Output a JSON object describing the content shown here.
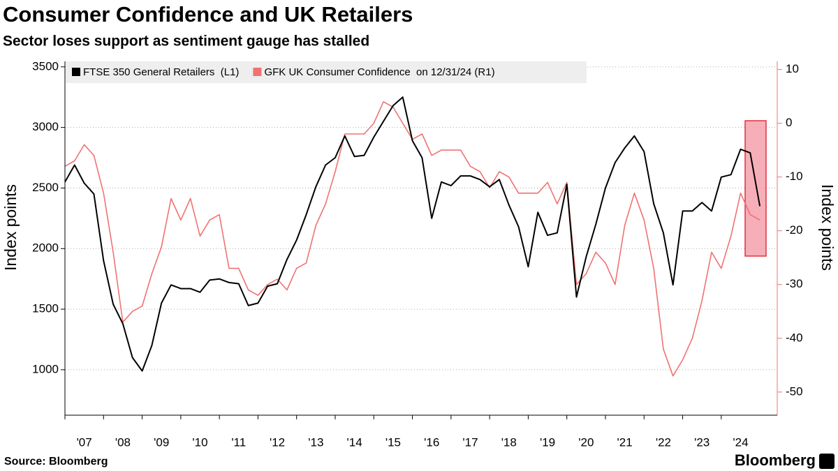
{
  "chart_data": {
    "type": "line",
    "title": "Consumer Confidence and UK Retailers",
    "subtitle": "Sector loses support as sentiment gauge has stalled",
    "y_label": "Index points",
    "y2_label": "Index points",
    "source": "Source: Bloomberg",
    "brand": "Bloomberg",
    "x": [
      2007,
      2007.25,
      2007.5,
      2007.75,
      2008,
      2008.25,
      2008.5,
      2008.75,
      2009,
      2009.25,
      2009.5,
      2009.75,
      2010,
      2010.25,
      2010.5,
      2010.75,
      2011,
      2011.25,
      2011.5,
      2011.75,
      2012,
      2012.25,
      2012.5,
      2012.75,
      2013,
      2013.25,
      2013.5,
      2013.75,
      2014,
      2014.25,
      2014.5,
      2014.75,
      2015,
      2015.25,
      2015.5,
      2015.75,
      2016,
      2016.25,
      2016.5,
      2016.75,
      2017,
      2017.25,
      2017.5,
      2017.75,
      2018,
      2018.25,
      2018.5,
      2018.75,
      2019,
      2019.25,
      2019.5,
      2019.75,
      2020,
      2020.25,
      2020.5,
      2020.75,
      2021,
      2021.25,
      2021.5,
      2021.75,
      2022,
      2022.25,
      2022.5,
      2022.75,
      2023,
      2023.25,
      2023.5,
      2023.75,
      2024,
      2024.25,
      2024.5,
      2024.75,
      2025
    ],
    "series": [
      {
        "name": "FTSE 350 General Retailers  (L1)",
        "color": "#000000",
        "axis": "y",
        "values": [
          2550,
          2690,
          2540,
          2450,
          1900,
          1540,
          1380,
          1100,
          990,
          1200,
          1550,
          1700,
          1670,
          1670,
          1640,
          1740,
          1750,
          1720,
          1710,
          1530,
          1550,
          1690,
          1710,
          1910,
          2070,
          2280,
          2510,
          2690,
          2750,
          2930,
          2760,
          2770,
          2920,
          3050,
          3180,
          3250,
          2890,
          2750,
          2250,
          2550,
          2520,
          2600,
          2600,
          2570,
          2510,
          2570,
          2360,
          2180,
          1850,
          2300,
          2110,
          2130,
          2530,
          1600,
          1930,
          2200,
          2500,
          2710,
          2830,
          2930,
          2800,
          2370,
          2130,
          1700,
          2310,
          2310,
          2380,
          2310,
          2590,
          2610,
          2820,
          2790,
          2350
        ]
      },
      {
        "name": "GFK UK Consumer Confidence  on 12/31/24 (R1)",
        "color": "#f07272",
        "axis": "y2",
        "values": [
          -8,
          -7,
          -4,
          -6,
          -13,
          -24,
          -37,
          -35,
          -34,
          -28,
          -23,
          -14,
          -18,
          -14,
          -21,
          -18,
          -17,
          -27,
          -27,
          -31,
          -32,
          -30,
          -29,
          -31,
          -27,
          -26,
          -19,
          -15,
          -9,
          -2,
          -2,
          -2,
          0,
          4,
          3,
          0,
          -3,
          -2,
          -6,
          -5,
          -5,
          -5,
          -8,
          -9,
          -12,
          -9,
          -10,
          -13,
          -13,
          -13,
          -11,
          -15,
          -11,
          -30,
          -28,
          -24,
          -26,
          -30,
          -19,
          -13,
          -18,
          -27,
          -42,
          -47,
          -44,
          -40,
          -33,
          -24,
          -27,
          -21,
          -13,
          -17,
          -18
        ]
      }
    ],
    "xlim": [
      2007,
      2025.45
    ],
    "xticks": [
      {
        "value": 2007,
        "label": "'07"
      },
      {
        "value": 2008,
        "label": "'08"
      },
      {
        "value": 2009,
        "label": "'09"
      },
      {
        "value": 2010,
        "label": "'10"
      },
      {
        "value": 2011,
        "label": "'11"
      },
      {
        "value": 2012,
        "label": "'12"
      },
      {
        "value": 2013,
        "label": "'13"
      },
      {
        "value": 2014,
        "label": "'14"
      },
      {
        "value": 2015,
        "label": "'15"
      },
      {
        "value": 2016,
        "label": "'16"
      },
      {
        "value": 2017,
        "label": "'17"
      },
      {
        "value": 2018,
        "label": "'18"
      },
      {
        "value": 2019,
        "label": "'19"
      },
      {
        "value": 2020,
        "label": "'20"
      },
      {
        "value": 2021,
        "label": "'21"
      },
      {
        "value": 2022,
        "label": "'22"
      },
      {
        "value": 2023,
        "label": "'23"
      },
      {
        "value": 2024,
        "label": "'24"
      }
    ],
    "ylim": [
      625,
      3545
    ],
    "yticks": [
      1000,
      1500,
      2000,
      2500,
      3000,
      3500
    ],
    "y2lim": [
      -54.3,
      11.5
    ],
    "y2ticks": [
      -50,
      -40,
      -30,
      -20,
      -10,
      0,
      10
    ],
    "y2color": "#f07272",
    "grid": true,
    "legend": "top-left"
  }
}
